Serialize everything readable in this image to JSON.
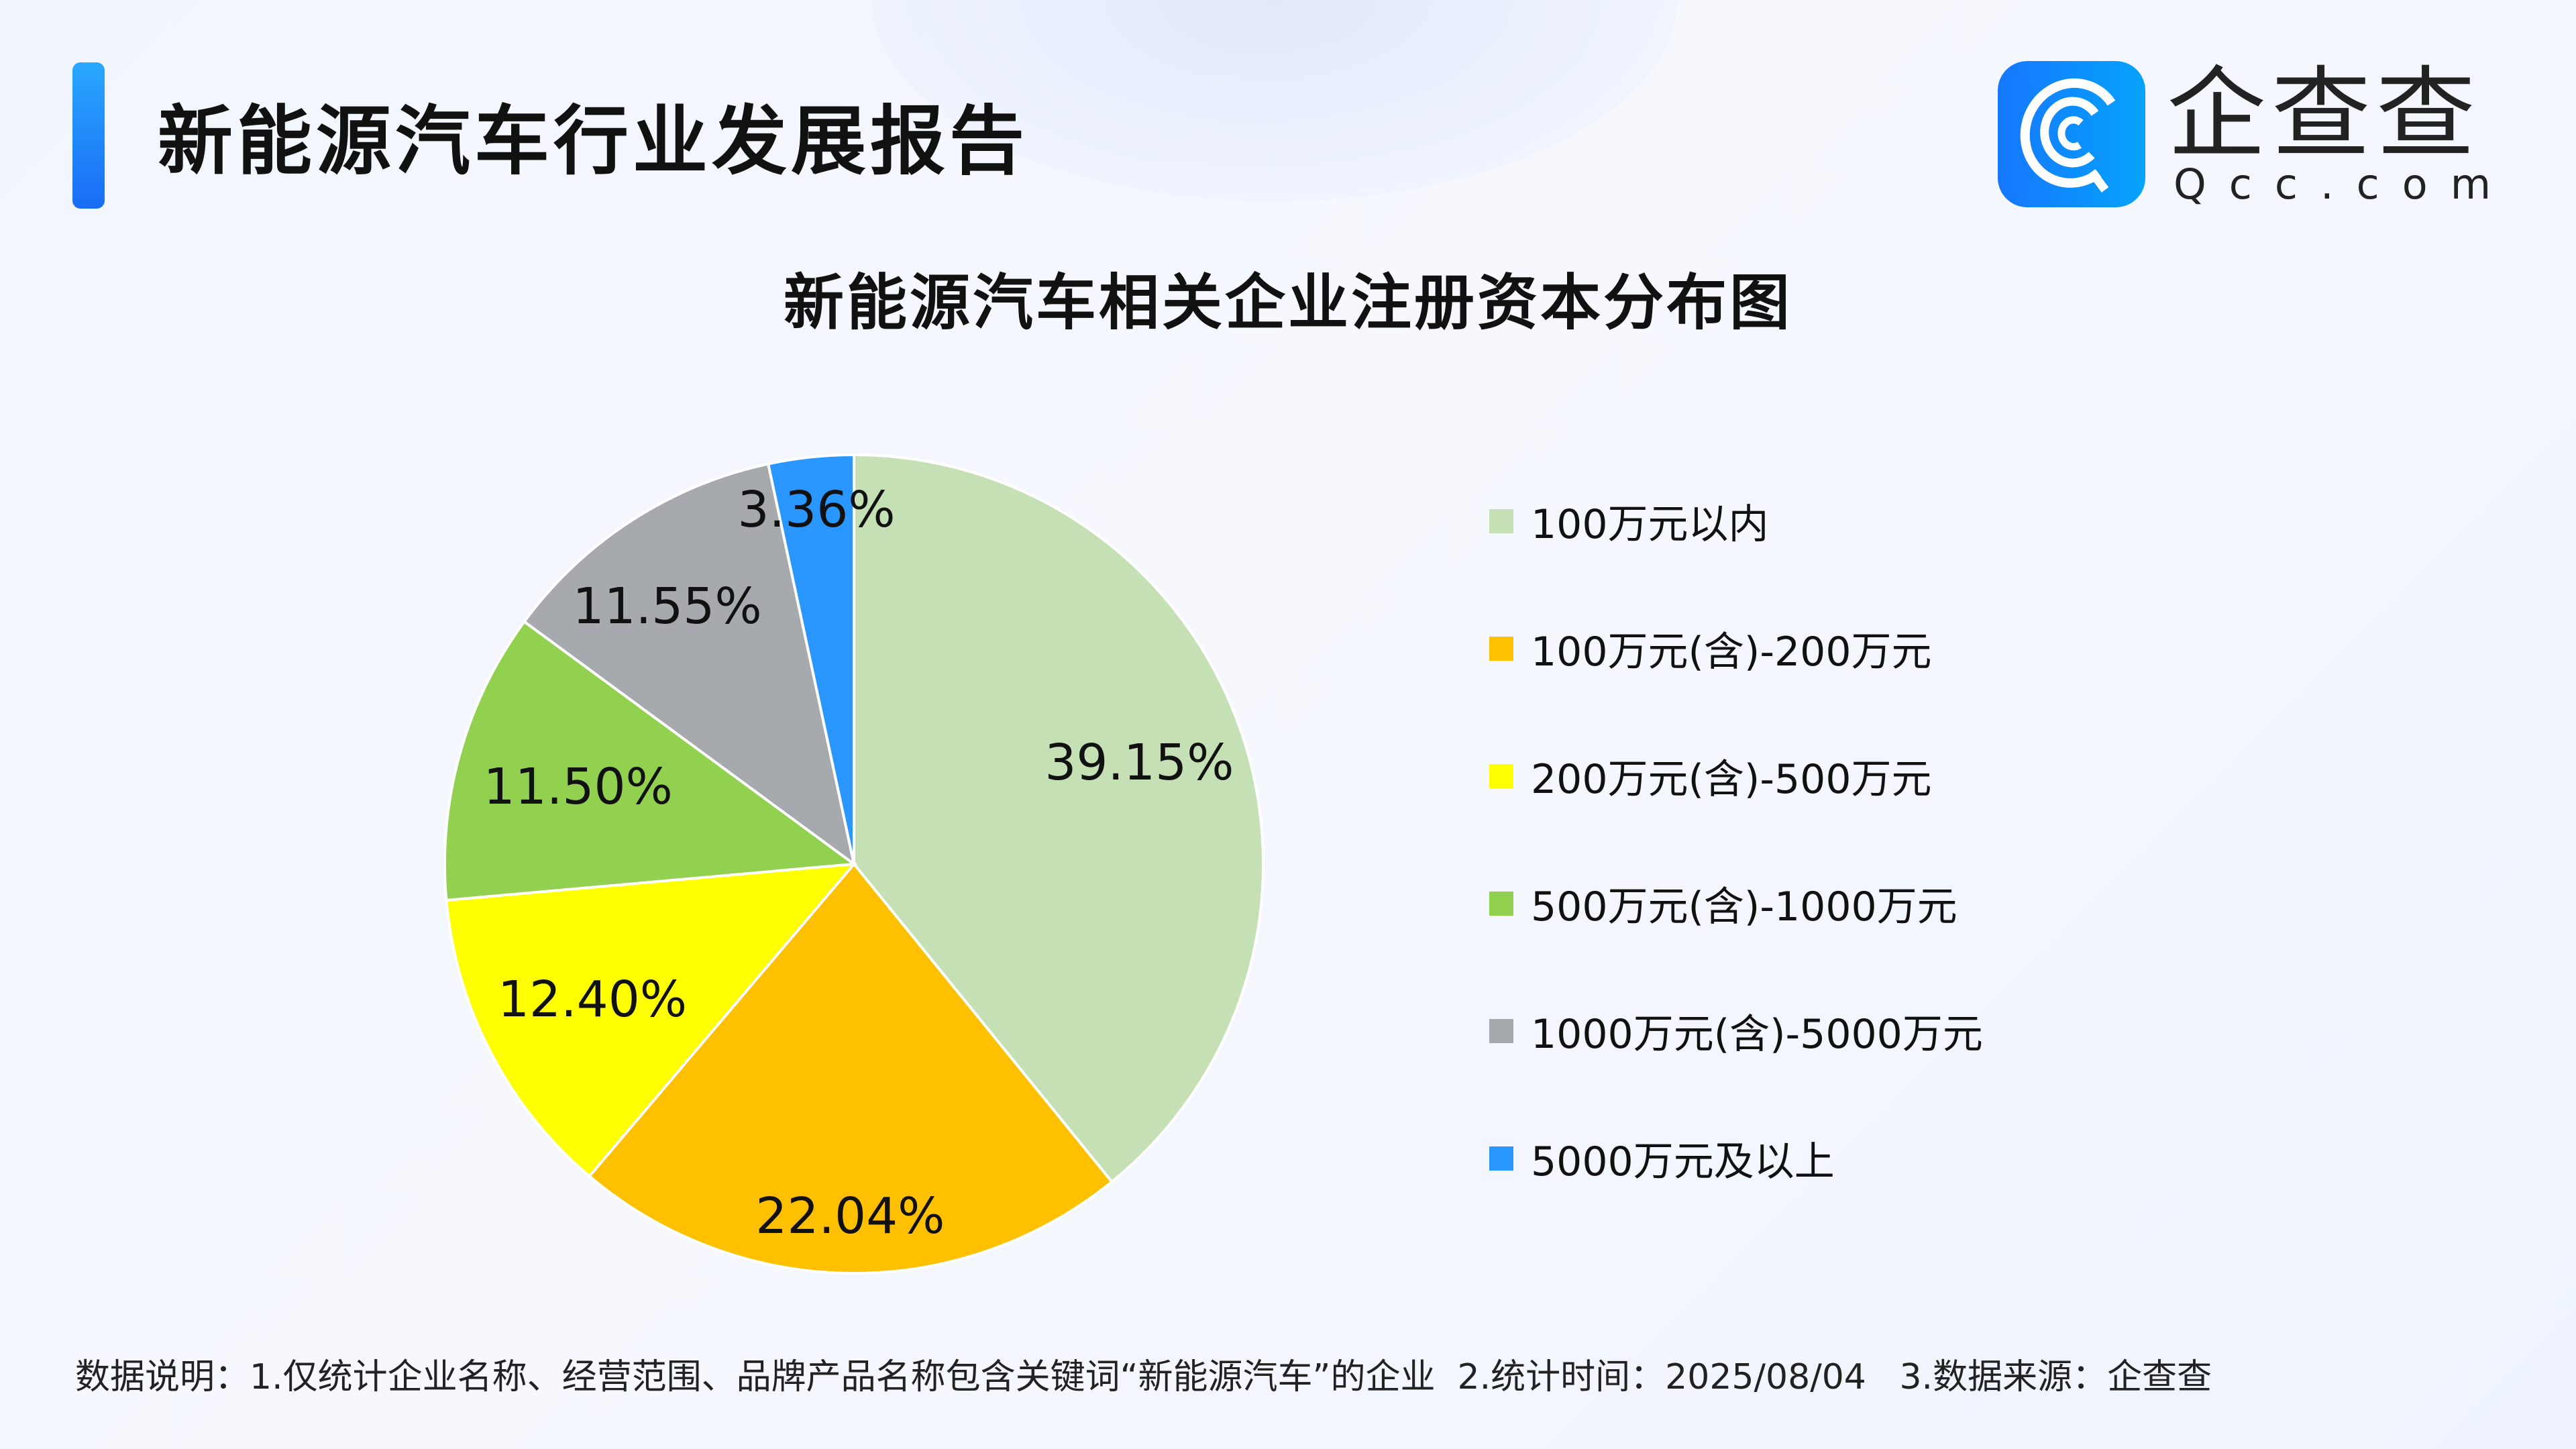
{
  "header": {
    "title": "新能源汽车行业发展报告"
  },
  "logo": {
    "name": "企查查",
    "sub": "Qcc.com"
  },
  "chart_data": {
    "type": "pie",
    "title": "新能源汽车相关企业注册资本分布图",
    "categories": [
      "100万元以内",
      "100万元(含)-200万元",
      "200万元(含)-500万元",
      "500万元(含)-1000万元",
      "1000万元(含)-5000万元",
      "5000万元及以上"
    ],
    "values": [
      39.15,
      22.04,
      12.4,
      11.5,
      11.55,
      3.36
    ],
    "labels": [
      "39.15%",
      "22.04%",
      "12.40%",
      "11.50%",
      "11.55%",
      "3.36%"
    ],
    "colors": [
      "#c5e0b4",
      "#ffc000",
      "#ffff00",
      "#92d050",
      "#a6a9ad",
      "#2997ff"
    ],
    "legend_placement": "right",
    "start": "top",
    "direction": "clockwise"
  },
  "footer": {
    "note": "数据说明：1.仅统计企业名称、经营范围、品牌产品名称包含关键词“新能源汽车”的企业  2.统计时间：2025/08/04   3.数据来源：企查查"
  }
}
